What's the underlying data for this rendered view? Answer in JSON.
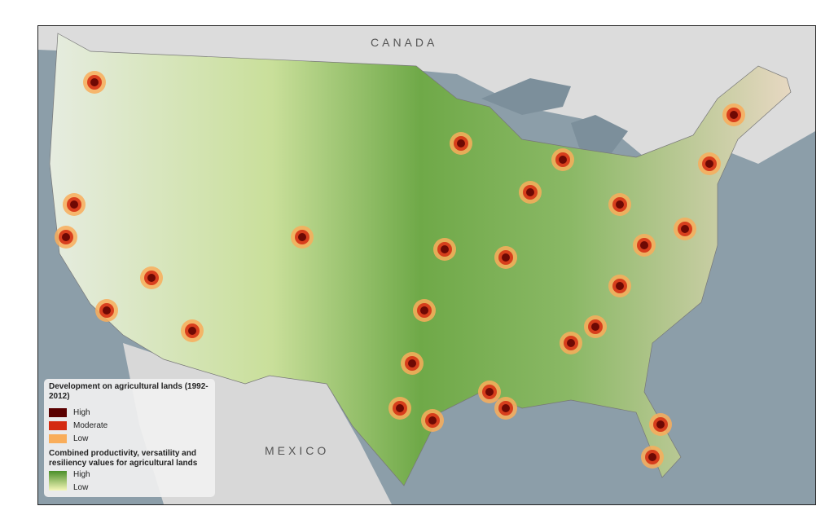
{
  "labels": {
    "canada": "CANADA",
    "mexico": "MEXICO"
  },
  "legend": {
    "development_title": "Development on agricultural lands (1992-2012)",
    "development_items": [
      {
        "label": "High",
        "color": "#5a0000"
      },
      {
        "label": "Moderate",
        "color": "#d42a10"
      },
      {
        "label": "Low",
        "color": "#f9ad5a"
      }
    ],
    "productivity_title": "Combined productivity, versatility and resiliency values for agricultural lands",
    "productivity_high": "High",
    "productivity_low": "Low",
    "productivity_colors": [
      "#4b8f2a",
      "#f5f7b8"
    ]
  }
}
